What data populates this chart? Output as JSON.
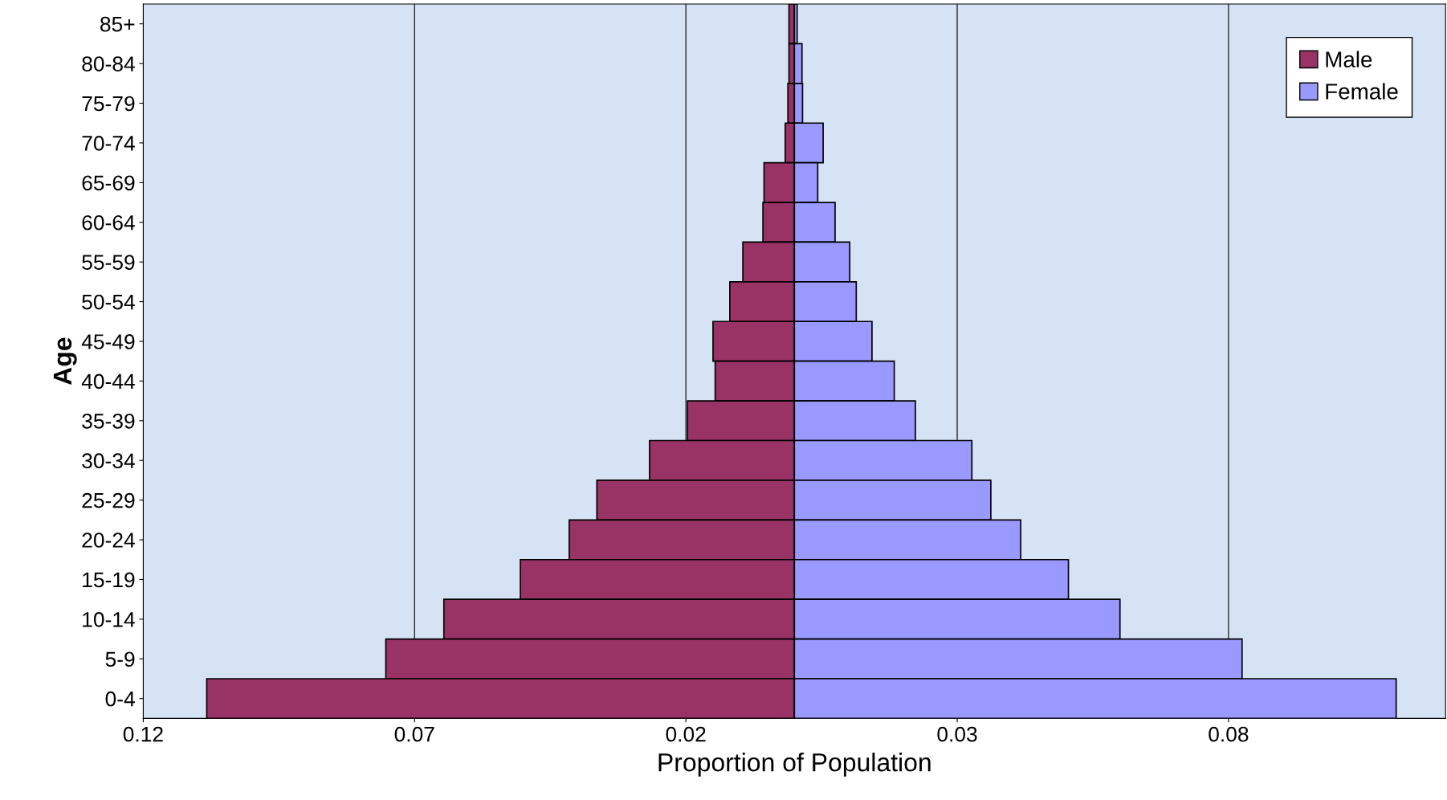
{
  "chart_data": {
    "type": "bar",
    "orientation": "horizontal",
    "stacked": true,
    "xlabel": "Proportion of Population",
    "ylabel": "Age",
    "categories": [
      "85+",
      "80-84",
      "75-79",
      "70-74",
      "65-69",
      "60-64",
      "55-59",
      "50-54",
      "45-49",
      "40-44",
      "35-39",
      "30-34",
      "25-29",
      "20-24",
      "15-19",
      "10-14",
      "5-9",
      "0-4"
    ],
    "series": [
      {
        "name": "Male",
        "color": "#993366",
        "values": [
          -0.001,
          -0.001,
          -0.0012,
          -0.0017,
          -0.0056,
          -0.0058,
          -0.0095,
          -0.0119,
          -0.015,
          -0.0146,
          -0.0197,
          -0.0267,
          -0.0364,
          -0.0415,
          -0.0505,
          -0.0646,
          -0.0753,
          -0.1083
        ]
      },
      {
        "name": "Female",
        "color": "#9999ff",
        "values": [
          0.0005,
          0.0014,
          0.0015,
          0.0053,
          0.0043,
          0.0075,
          0.0102,
          0.0114,
          0.0143,
          0.0184,
          0.0223,
          0.0327,
          0.0362,
          0.0417,
          0.0505,
          0.06,
          0.0825,
          0.1109
        ]
      }
    ],
    "xlim": [
      -0.12,
      0.12
    ],
    "xticks": [
      {
        "value": -0.12,
        "label": "0.12"
      },
      {
        "value": -0.07,
        "label": "0.07"
      },
      {
        "value": -0.02,
        "label": "0.02"
      },
      {
        "value": 0.03,
        "label": "0.03"
      },
      {
        "value": 0.08,
        "label": "0.08"
      }
    ],
    "grid": "x",
    "legend": "top right"
  }
}
